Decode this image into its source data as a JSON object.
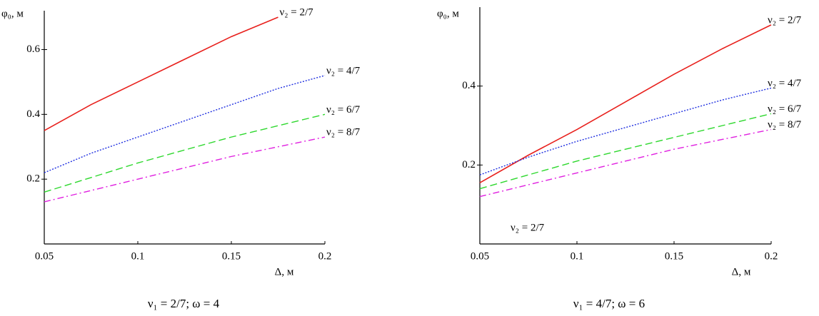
{
  "chart_data": [
    {
      "type": "line",
      "caption": "ν₁ = 2/7;  ω = 4",
      "y_label": "φ₀, м",
      "x_label": "Δ, м",
      "x": [
        0.05,
        0.075,
        0.1,
        0.125,
        0.15,
        0.175,
        0.2
      ],
      "xlim": [
        0.05,
        0.2
      ],
      "xticks": [
        0.05,
        0.1,
        0.15,
        0.2
      ],
      "ylim": [
        0,
        0.72
      ],
      "yticks": [
        0.2,
        0.4,
        0.6
      ],
      "series": [
        {
          "name": "ν₂ = 2/7",
          "color": "#e8201c",
          "style": "solid",
          "values": [
            0.35,
            0.43,
            0.5,
            0.57,
            0.64,
            0.7,
            null
          ]
        },
        {
          "name": "ν₂ = 4/7",
          "color": "#1f2fe0",
          "style": "dotted",
          "values": [
            0.22,
            0.28,
            0.33,
            0.38,
            0.43,
            0.48,
            0.52
          ]
        },
        {
          "name": "ν₂ = 6/7",
          "color": "#2ed82e",
          "style": "dashed",
          "values": [
            0.16,
            0.205,
            0.25,
            0.29,
            0.33,
            0.365,
            0.4
          ]
        },
        {
          "name": "ν₂ = 8/7",
          "color": "#e020e0",
          "style": "dashdot",
          "values": [
            0.13,
            0.165,
            0.2,
            0.235,
            0.27,
            0.3,
            0.33
          ]
        }
      ]
    },
    {
      "type": "line",
      "caption": "ν₁ = 4/7;  ω = 6",
      "y_label": "φ₀, м",
      "x_label": "Δ, м",
      "annotations": [
        "ν₂ = 2/7"
      ],
      "x": [
        0.05,
        0.075,
        0.1,
        0.125,
        0.15,
        0.175,
        0.2
      ],
      "xlim": [
        0.05,
        0.2
      ],
      "xticks": [
        0.05,
        0.1,
        0.15,
        0.2
      ],
      "ylim": [
        0,
        0.6
      ],
      "yticks": [
        0.2,
        0.4
      ],
      "series": [
        {
          "name": "ν₂ = 2/7",
          "color": "#e8201c",
          "style": "solid",
          "values": [
            0.155,
            0.225,
            0.29,
            0.36,
            0.43,
            0.495,
            0.555
          ]
        },
        {
          "name": "ν₂ = 4/7",
          "color": "#1f2fe0",
          "style": "dotted",
          "values": [
            0.175,
            0.22,
            0.26,
            0.295,
            0.33,
            0.365,
            0.395
          ]
        },
        {
          "name": "ν₂ = 6/7",
          "color": "#2ed82e",
          "style": "dashed",
          "values": [
            0.14,
            0.175,
            0.21,
            0.24,
            0.27,
            0.3,
            0.33
          ]
        },
        {
          "name": "ν₂ = 8/7",
          "color": "#e020e0",
          "style": "dashdot",
          "values": [
            0.12,
            0.15,
            0.18,
            0.21,
            0.24,
            0.265,
            0.29
          ]
        }
      ]
    }
  ]
}
